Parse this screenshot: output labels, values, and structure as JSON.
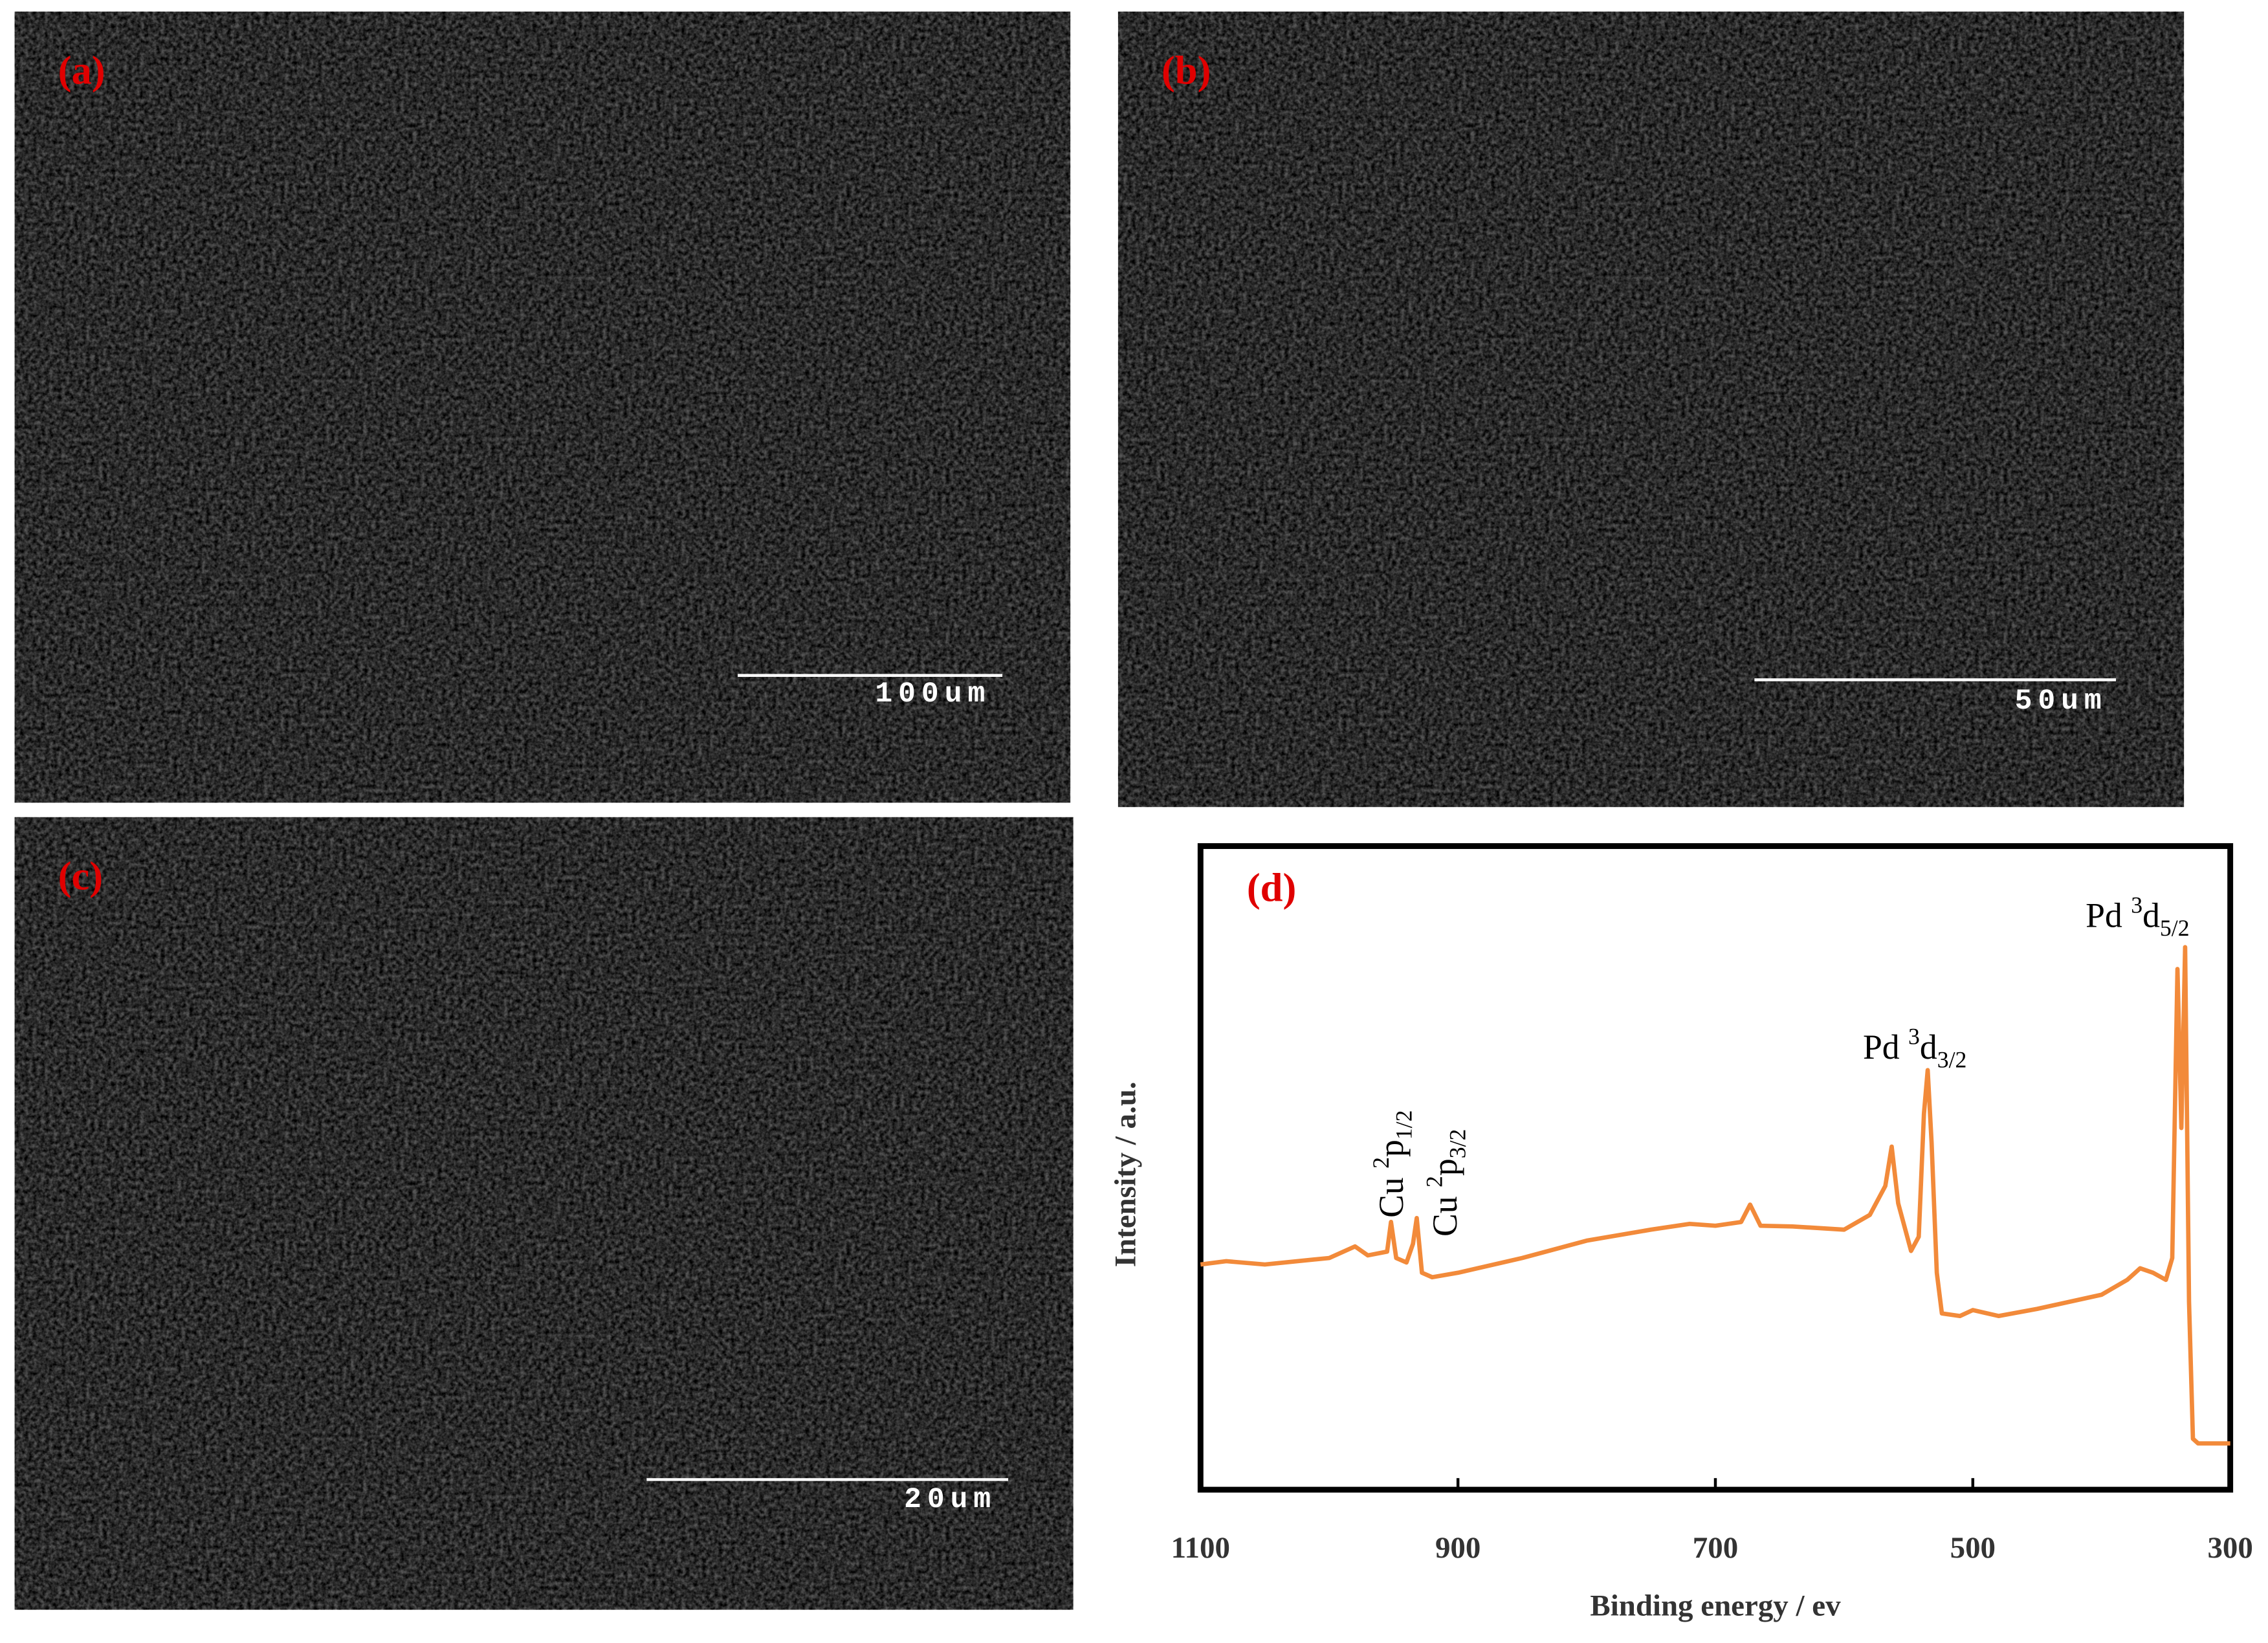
{
  "panels": [
    {
      "label": "(a)",
      "scale_bar": "100um"
    },
    {
      "label": "(b)",
      "scale_bar": "50um"
    },
    {
      "label": "(c)",
      "scale_bar": "20um"
    }
  ],
  "chart_data": {
    "type": "line",
    "panel_label": "(d)",
    "x_label": "Binding energy / ev",
    "y_label": "Intensity / a.u.",
    "xlim": [
      1100,
      300
    ],
    "xticks": [
      1100,
      900,
      700,
      500,
      300
    ],
    "ylim": [
      0,
      100
    ],
    "color": "#f28a3a",
    "x": [
      1100,
      1080,
      1050,
      1000,
      980,
      970,
      955,
      952,
      948,
      940,
      935,
      932,
      928,
      920,
      900,
      850,
      800,
      750,
      720,
      700,
      680,
      673,
      665,
      640,
      600,
      580,
      568,
      563,
      558,
      548,
      542,
      538,
      535,
      532,
      528,
      524,
      510,
      500,
      480,
      450,
      400,
      380,
      370,
      360,
      350,
      345,
      341,
      338,
      335,
      332,
      329,
      325,
      310,
      300
    ],
    "values": [
      35,
      35.5,
      35,
      36,
      37.8,
      36.4,
      37,
      41.6,
      36,
      35.3,
      38.2,
      42.2,
      33.7,
      33,
      33.7,
      36,
      38.7,
      40.4,
      41.3,
      41,
      41.6,
      44.3,
      41,
      40.9,
      40.4,
      42.7,
      47.2,
      53.3,
      44.5,
      37.1,
      39.3,
      58.4,
      65.2,
      53.9,
      33.7,
      27.4,
      27,
      27.9,
      27,
      28.1,
      30.3,
      32.6,
      34.4,
      33.7,
      32.6,
      36,
      80.9,
      56.2,
      84.3,
      29.2,
      7.9,
      7.2,
      7.2,
      7.2
    ],
    "annotations": [
      {
        "prefix": "Cu",
        "sup": "2",
        "main": "p",
        "sub": "1/2"
      },
      {
        "prefix": "Cu",
        "sup": "2",
        "main": "p",
        "sub": "3/2"
      },
      {
        "prefix": "Pd",
        "sup": "3",
        "main": "d",
        "sub": "3/2"
      },
      {
        "prefix": "Pd",
        "sup": "3",
        "main": "d",
        "sub": "5/2"
      }
    ]
  }
}
